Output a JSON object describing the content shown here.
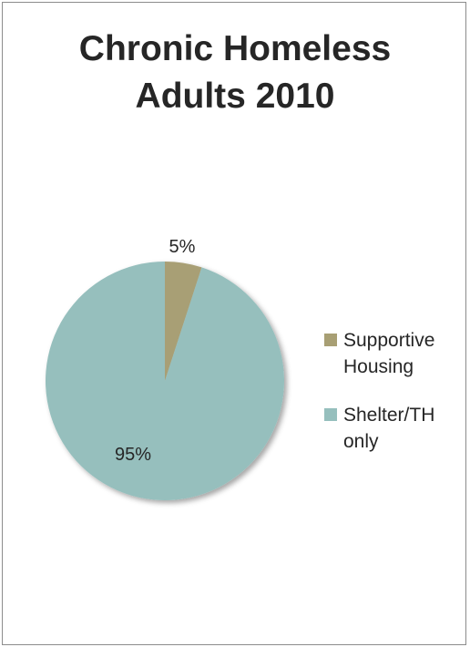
{
  "chart_data": {
    "type": "pie",
    "title_lines": [
      "Chronic Homeless",
      "Adults 2010"
    ],
    "categories": [
      "Supportive Housing",
      "Shelter/TH only"
    ],
    "values": [
      5,
      95
    ],
    "data_labels": [
      "5%",
      "95%"
    ],
    "legend": {
      "placement": "right",
      "entries": [
        {
          "lines": [
            "Supportive",
            "Housing"
          ]
        },
        {
          "lines": [
            "Shelter/TH",
            "only"
          ]
        }
      ]
    },
    "colors": [
      "#a89f74",
      "#96bfbd"
    ]
  }
}
